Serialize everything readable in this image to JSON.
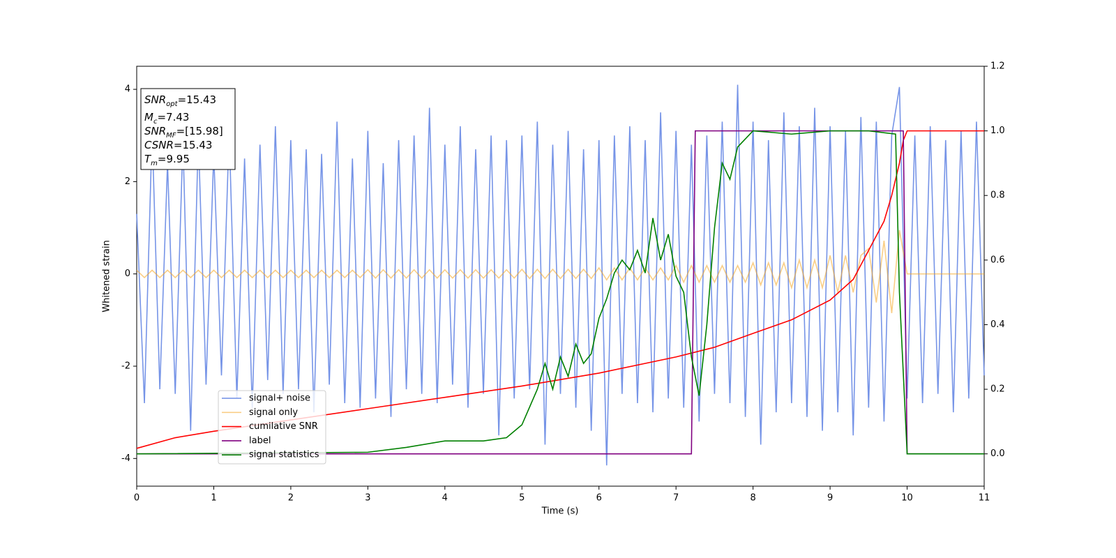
{
  "chart_data": {
    "type": "line",
    "xlabel": "Time (s)",
    "ylabel": "Whitened strain",
    "xlim": [
      0,
      11
    ],
    "xticks": [
      0,
      1,
      2,
      3,
      4,
      5,
      6,
      7,
      8,
      9,
      10,
      11
    ],
    "ylim": [
      -4.6,
      4.5
    ],
    "yticks": [
      -4,
      -2,
      0,
      2,
      4
    ],
    "y2lim": [
      -0.1,
      1.2
    ],
    "y2ticks": [
      {
        "value": 0,
        "label": "0.0"
      },
      0.2,
      0.4,
      0.6,
      0.8,
      {
        "value": 1,
        "label": "1.0"
      },
      1.2
    ],
    "legend": "lower left",
    "annotations": [
      {
        "var": "SNR",
        "sub": "opt",
        "text": "=15.43"
      },
      {
        "var": "M",
        "sub": "c",
        "text": "=7.43"
      },
      {
        "var": "SNR",
        "sub": "MF",
        "text": "=[15.98]"
      },
      {
        "var": "CSNR",
        "text": "=15.43"
      },
      {
        "var": "T",
        "sub": "m",
        "text": "=9.95"
      }
    ],
    "x": [
      0,
      0.1,
      0.2,
      0.3,
      0.4,
      0.5,
      0.6,
      0.7,
      0.8,
      0.9,
      1,
      1.1,
      1.2,
      1.3,
      1.4,
      1.5,
      1.6,
      1.7,
      1.8,
      1.9,
      2,
      2.1,
      2.2,
      2.3,
      2.4,
      2.5,
      2.6,
      2.7,
      2.8,
      2.9,
      3,
      3.1,
      3.2,
      3.3,
      3.4,
      3.5,
      3.6,
      3.7,
      3.8,
      3.9,
      4,
      4.1,
      4.2,
      4.3,
      4.4,
      4.5,
      4.6,
      4.7,
      4.8,
      4.9,
      5,
      5.1,
      5.2,
      5.3,
      5.4,
      5.5,
      5.6,
      5.7,
      5.8,
      5.9,
      6,
      6.1,
      6.2,
      6.3,
      6.4,
      6.5,
      6.6,
      6.7,
      6.8,
      6.9,
      7,
      7.1,
      7.2,
      7.3,
      7.4,
      7.5,
      7.6,
      7.7,
      7.8,
      7.9,
      8,
      8.1,
      8.2,
      8.3,
      8.4,
      8.5,
      8.6,
      8.7,
      8.8,
      8.9,
      9,
      9.1,
      9.2,
      9.3,
      9.4,
      9.5,
      9.6,
      9.7,
      9.8,
      9.9,
      10,
      10.1,
      10.2,
      10.3,
      10.4,
      10.5,
      10.6,
      10.7,
      10.8,
      10.9,
      11
    ],
    "series": [
      {
        "name": "signal+ noise",
        "color": "#6f8ee6",
        "values": [
          1.3,
          -2.8,
          3.1,
          -2.5,
          2.4,
          -2.6,
          2.9,
          -3.4,
          3.0,
          -2.4,
          2.6,
          -2.2,
          3.1,
          -2.7,
          2.5,
          -2.9,
          2.8,
          -2.3,
          3.2,
          -2.6,
          2.9,
          -2.5,
          2.7,
          -3.0,
          2.6,
          -2.4,
          3.3,
          -2.8,
          2.5,
          -2.9,
          3.1,
          -2.7,
          2.4,
          -3.1,
          2.9,
          -2.5,
          3.0,
          -2.6,
          3.6,
          -2.8,
          2.8,
          -2.4,
          3.2,
          -2.9,
          2.7,
          -2.6,
          3.0,
          -3.5,
          2.9,
          -2.7,
          3.0,
          -2.5,
          3.3,
          -3.7,
          2.8,
          -2.6,
          3.1,
          -2.9,
          2.7,
          -3.4,
          2.9,
          -4.15,
          3.0,
          -2.6,
          3.2,
          -2.8,
          2.9,
          -3.0,
          3.5,
          -2.7,
          3.1,
          -2.9,
          2.8,
          -3.2,
          3.0,
          -2.6,
          3.3,
          -2.8,
          4.1,
          -3.1,
          3.3,
          -3.7,
          2.9,
          -3.0,
          3.5,
          -2.8,
          3.2,
          -3.1,
          3.6,
          -3.4,
          3.2,
          -3.0,
          3.1,
          -3.5,
          3.4,
          -2.9,
          3.3,
          -3.2,
          3.0,
          4.05,
          -2.7,
          3.0,
          -2.8,
          3.2,
          -2.6,
          2.9,
          -3.0,
          3.1,
          -2.7,
          3.3,
          -2.2
        ]
      },
      {
        "name": "signal only",
        "color": "#f5a623",
        "values": [
          0.08,
          -0.08,
          0.08,
          -0.08,
          0.08,
          -0.08,
          0.08,
          -0.08,
          0.08,
          -0.08,
          0.08,
          -0.08,
          0.08,
          -0.08,
          0.08,
          -0.08,
          0.08,
          -0.08,
          0.08,
          -0.08,
          0.08,
          -0.08,
          0.08,
          -0.08,
          0.08,
          -0.08,
          0.08,
          -0.08,
          0.08,
          -0.08,
          0.09,
          -0.09,
          0.09,
          -0.09,
          0.09,
          -0.09,
          0.09,
          -0.09,
          0.09,
          -0.09,
          0.09,
          -0.09,
          0.09,
          -0.09,
          0.09,
          -0.09,
          0.09,
          -0.09,
          0.09,
          -0.09,
          0.1,
          -0.1,
          0.1,
          -0.1,
          0.1,
          -0.1,
          0.1,
          -0.1,
          0.1,
          -0.1,
          0.13,
          -0.13,
          0.13,
          -0.13,
          0.13,
          -0.13,
          0.13,
          -0.13,
          0.13,
          -0.13,
          0.18,
          -0.18,
          0.18,
          -0.18,
          0.18,
          -0.18,
          0.18,
          -0.18,
          0.18,
          -0.18,
          0.24,
          -0.24,
          0.24,
          -0.24,
          0.24,
          -0.3,
          0.3,
          -0.3,
          0.3,
          -0.3,
          0.4,
          -0.4,
          0.4,
          -0.4,
          0.4,
          0.55,
          -0.62,
          0.72,
          -0.85,
          0.95,
          0,
          0,
          0,
          0,
          0,
          0,
          0,
          0,
          0,
          0,
          0
        ]
      },
      {
        "name": "cumilative SNR",
        "color": "#ff0000",
        "axis": "y2",
        "x": [
          0,
          0.5,
          1,
          2,
          3,
          4,
          5,
          6,
          7,
          7.5,
          8,
          8.5,
          9,
          9.3,
          9.5,
          9.7,
          9.8,
          9.9,
          9.95,
          10,
          11
        ],
        "values": [
          0.017,
          0.05,
          0.07,
          0.105,
          0.14,
          0.175,
          0.21,
          0.25,
          0.3,
          0.33,
          0.373,
          0.415,
          0.476,
          0.54,
          0.63,
          0.72,
          0.8,
          0.9,
          0.97,
          1.0,
          1.0
        ]
      },
      {
        "name": "label",
        "color": "#800080",
        "axis": "y2",
        "x": [
          0,
          7.2,
          7.25,
          9.95,
          10,
          11
        ],
        "values": [
          0,
          0,
          1,
          1,
          0,
          0
        ]
      },
      {
        "name": "signal statistics",
        "color": "#008000",
        "axis": "y2",
        "x": [
          0,
          3,
          3.5,
          4,
          4.5,
          4.8,
          5,
          5.2,
          5.3,
          5.4,
          5.5,
          5.6,
          5.7,
          5.8,
          5.9,
          6,
          6.1,
          6.2,
          6.3,
          6.4,
          6.5,
          6.6,
          6.7,
          6.8,
          6.9,
          7,
          7.1,
          7.2,
          7.3,
          7.4,
          7.5,
          7.6,
          7.7,
          7.8,
          8,
          8.5,
          9,
          9.5,
          9.85,
          9.9,
          10,
          11
        ],
        "values": [
          0,
          0.005,
          0.02,
          0.04,
          0.04,
          0.05,
          0.09,
          0.2,
          0.28,
          0.2,
          0.3,
          0.24,
          0.34,
          0.28,
          0.31,
          0.42,
          0.48,
          0.56,
          0.6,
          0.57,
          0.63,
          0.56,
          0.73,
          0.6,
          0.68,
          0.55,
          0.5,
          0.3,
          0.18,
          0.4,
          0.7,
          0.9,
          0.85,
          0.95,
          1.0,
          0.99,
          1.0,
          1.0,
          0.99,
          0.5,
          0,
          0
        ]
      }
    ]
  }
}
